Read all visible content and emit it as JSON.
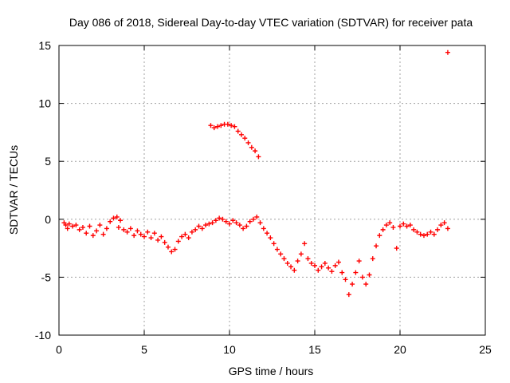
{
  "chart_data": {
    "type": "scatter",
    "title": "Day 086 of 2018, Sidereal Day-to-day VTEC variation (SDTVAR) for receiver pata",
    "xlabel": "GPS time / hours",
    "ylabel": "SDTVAR / TECUs",
    "xlim": [
      0,
      25
    ],
    "ylim": [
      -10,
      15
    ],
    "xticks": [
      "0",
      "5",
      "10",
      "15",
      "20",
      "25"
    ],
    "yticks": [
      "-10",
      "-5",
      "0",
      "5",
      "10",
      "15"
    ],
    "grid": true,
    "marker": "+",
    "color": "#ff0000",
    "series": [
      {
        "name": "main-band",
        "points": [
          [
            0.3,
            -0.3
          ],
          [
            0.4,
            -0.5
          ],
          [
            0.5,
            -0.8
          ],
          [
            0.6,
            -0.4
          ],
          [
            0.8,
            -0.6
          ],
          [
            1.0,
            -0.5
          ],
          [
            1.2,
            -0.9
          ],
          [
            1.4,
            -0.7
          ],
          [
            1.6,
            -1.2
          ],
          [
            1.8,
            -0.6
          ],
          [
            2.0,
            -1.4
          ],
          [
            2.2,
            -1.0
          ],
          [
            2.4,
            -0.5
          ],
          [
            2.6,
            -1.3
          ],
          [
            2.8,
            -0.8
          ],
          [
            3.0,
            -0.2
          ],
          [
            3.2,
            0.1
          ],
          [
            3.4,
            0.2
          ],
          [
            3.6,
            -0.1
          ],
          [
            3.5,
            -0.7
          ],
          [
            3.8,
            -0.9
          ],
          [
            4.0,
            -1.1
          ],
          [
            4.2,
            -0.8
          ],
          [
            4.4,
            -1.4
          ],
          [
            4.6,
            -1.0
          ],
          [
            4.8,
            -1.3
          ],
          [
            5.0,
            -1.5
          ],
          [
            5.2,
            -1.1
          ],
          [
            5.4,
            -1.6
          ],
          [
            5.6,
            -1.2
          ],
          [
            5.8,
            -1.8
          ],
          [
            6.0,
            -1.5
          ],
          [
            6.2,
            -2.0
          ],
          [
            6.4,
            -2.4
          ],
          [
            6.6,
            -2.8
          ],
          [
            6.8,
            -2.6
          ],
          [
            7.0,
            -1.9
          ],
          [
            7.2,
            -1.5
          ],
          [
            7.4,
            -1.3
          ],
          [
            7.6,
            -1.6
          ],
          [
            7.8,
            -1.1
          ],
          [
            8.0,
            -0.9
          ],
          [
            8.2,
            -0.6
          ],
          [
            8.4,
            -0.8
          ],
          [
            8.6,
            -0.5
          ],
          [
            8.8,
            -0.4
          ],
          [
            9.0,
            -0.3
          ],
          [
            9.2,
            -0.1
          ],
          [
            9.4,
            0.1
          ],
          [
            9.6,
            0.0
          ],
          [
            9.8,
            -0.2
          ],
          [
            10.0,
            -0.4
          ],
          [
            10.2,
            -0.1
          ],
          [
            10.4,
            -0.3
          ],
          [
            10.6,
            -0.5
          ],
          [
            10.8,
            -0.8
          ],
          [
            11.0,
            -0.6
          ],
          [
            11.2,
            -0.2
          ],
          [
            11.4,
            0.0
          ],
          [
            11.6,
            0.2
          ],
          [
            11.8,
            -0.3
          ],
          [
            12.0,
            -0.8
          ],
          [
            12.2,
            -1.2
          ],
          [
            12.4,
            -1.6
          ],
          [
            12.6,
            -2.1
          ],
          [
            12.8,
            -2.6
          ],
          [
            13.0,
            -3.0
          ],
          [
            13.2,
            -3.4
          ],
          [
            13.4,
            -3.8
          ],
          [
            13.6,
            -4.1
          ],
          [
            13.8,
            -4.4
          ],
          [
            14.0,
            -3.6
          ],
          [
            14.2,
            -3.0
          ],
          [
            14.4,
            -2.1
          ],
          [
            14.6,
            -3.4
          ],
          [
            14.8,
            -3.8
          ],
          [
            15.0,
            -4.0
          ],
          [
            15.2,
            -4.4
          ],
          [
            15.4,
            -4.1
          ],
          [
            15.6,
            -3.8
          ],
          [
            15.8,
            -4.2
          ],
          [
            16.0,
            -4.5
          ],
          [
            16.2,
            -4.0
          ],
          [
            16.4,
            -3.7
          ],
          [
            16.6,
            -4.6
          ],
          [
            16.8,
            -5.2
          ],
          [
            17.0,
            -6.5
          ],
          [
            17.2,
            -5.6
          ],
          [
            17.4,
            -4.6
          ],
          [
            17.6,
            -3.6
          ],
          [
            17.8,
            -5.0
          ],
          [
            18.0,
            -5.6
          ],
          [
            18.2,
            -4.8
          ],
          [
            18.4,
            -3.4
          ],
          [
            18.6,
            -2.3
          ],
          [
            18.8,
            -1.4
          ],
          [
            19.0,
            -0.9
          ],
          [
            19.2,
            -0.5
          ],
          [
            19.4,
            -0.3
          ],
          [
            19.6,
            -0.7
          ],
          [
            19.8,
            -2.5
          ],
          [
            20.0,
            -0.6
          ],
          [
            20.2,
            -0.4
          ],
          [
            20.4,
            -0.6
          ],
          [
            20.6,
            -0.5
          ],
          [
            20.8,
            -0.9
          ],
          [
            21.0,
            -1.1
          ],
          [
            21.2,
            -1.3
          ],
          [
            21.4,
            -1.4
          ],
          [
            21.6,
            -1.3
          ],
          [
            21.8,
            -1.1
          ],
          [
            22.0,
            -1.3
          ],
          [
            22.2,
            -0.9
          ],
          [
            22.4,
            -0.5
          ],
          [
            22.6,
            -0.3
          ],
          [
            22.8,
            -0.8
          ]
        ]
      },
      {
        "name": "upper-arc",
        "points": [
          [
            8.9,
            8.1
          ],
          [
            9.1,
            7.9
          ],
          [
            9.3,
            8.0
          ],
          [
            9.5,
            8.1
          ],
          [
            9.7,
            8.2
          ],
          [
            9.9,
            8.2
          ],
          [
            10.1,
            8.1
          ],
          [
            10.3,
            8.0
          ],
          [
            10.5,
            7.6
          ],
          [
            10.7,
            7.3
          ],
          [
            10.9,
            7.0
          ],
          [
            11.1,
            6.6
          ],
          [
            11.3,
            6.2
          ],
          [
            11.5,
            5.9
          ],
          [
            11.7,
            5.4
          ]
        ]
      },
      {
        "name": "outlier",
        "points": [
          [
            22.8,
            14.4
          ]
        ]
      }
    ]
  }
}
